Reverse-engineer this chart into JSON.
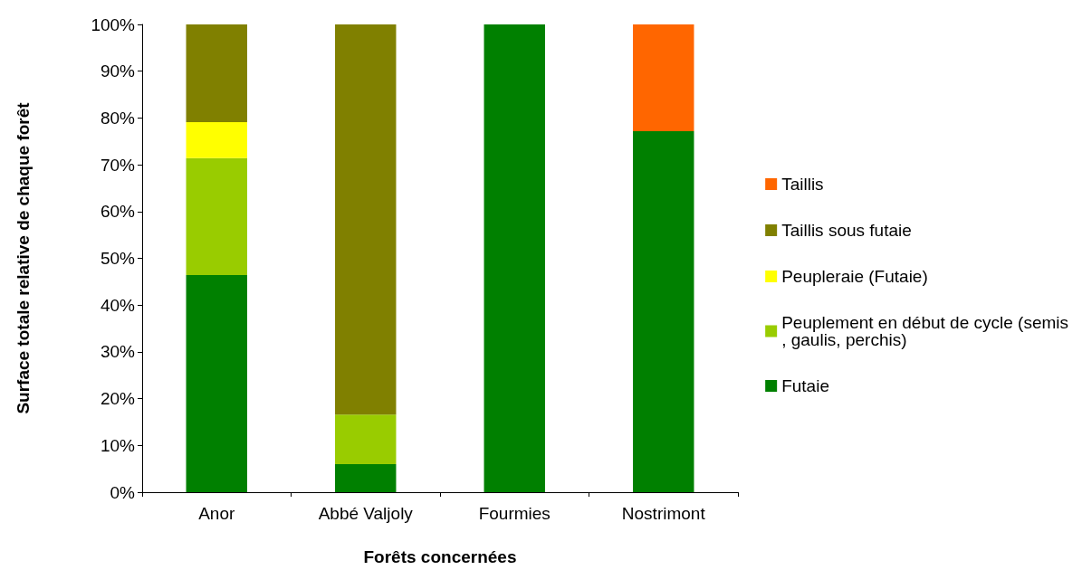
{
  "chart_data": {
    "type": "bar",
    "stacked": true,
    "xlabel": "Forêts concernées",
    "ylabel": "Surface totale relative de chaque forêt",
    "categories": [
      "Anor",
      "Abbé Valjoly",
      "Fourmies",
      "Nostrimont"
    ],
    "series": [
      {
        "name": "Futaie",
        "color": "#008000",
        "values": [
          46.4,
          6.0,
          100,
          77.2
        ]
      },
      {
        "name": "Peuplement en début de cycle (semis, gaulis, perchis)",
        "color": "#99cc00",
        "values": [
          25.0,
          10.6,
          null,
          null
        ]
      },
      {
        "name": "Peupleraie (Futaie)",
        "color": "#ffff00",
        "values": [
          7.7,
          null,
          null,
          null
        ]
      },
      {
        "name": "Taillis sous futaie",
        "color": "#808000",
        "values": [
          20.9,
          83.4,
          null,
          null
        ]
      },
      {
        "name": "Taillis",
        "color": "#ff6600",
        "values": [
          null,
          null,
          null,
          22.8
        ]
      }
    ],
    "ylim": [
      0,
      100
    ],
    "yticks": [
      {
        "value": 0,
        "label": "0%"
      },
      {
        "value": 10,
        "label": "10%"
      },
      {
        "value": 20,
        "label": "20%"
      },
      {
        "value": 30,
        "label": "30%"
      },
      {
        "value": 40,
        "label": "40%"
      },
      {
        "value": 50,
        "label": "50%"
      },
      {
        "value": 60,
        "label": "60%"
      },
      {
        "value": 70,
        "label": "70%"
      },
      {
        "value": 80,
        "label": "80%"
      },
      {
        "value": 90,
        "label": "90%"
      },
      {
        "value": 100,
        "label": "100%"
      }
    ],
    "grid": false,
    "legend": "right"
  }
}
